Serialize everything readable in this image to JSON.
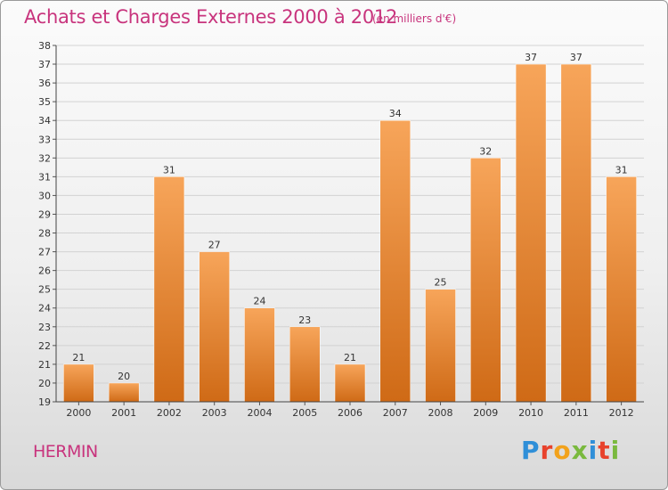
{
  "header": {
    "title": "Achats et Charges Externes 2000 à 2012",
    "subtitle": "(en milliers d'€)"
  },
  "footer": {
    "commune": "HERMIN",
    "brand": "Proxiti",
    "brand_colors": [
      "#2f8fd8",
      "#e8422c",
      "#f2a21b",
      "#7ab93e",
      "#2f8fd8",
      "#e8422c",
      "#7ab93e"
    ]
  },
  "colors": {
    "text_accent": "#c8347d",
    "bar_light": "#f7a55a",
    "bar_dark": "#cf6a16",
    "grid": "#d2d2d2"
  },
  "chart_data": {
    "type": "bar",
    "categories": [
      "2000",
      "2001",
      "2002",
      "2003",
      "2004",
      "2005",
      "2006",
      "2007",
      "2008",
      "2009",
      "2010",
      "2011",
      "2012"
    ],
    "values": [
      21,
      20,
      31,
      27,
      24,
      23,
      21,
      34,
      25,
      32,
      37,
      37,
      31
    ],
    "ylim": [
      19,
      38
    ],
    "yticks": [
      19,
      20,
      21,
      22,
      23,
      24,
      25,
      26,
      27,
      28,
      29,
      30,
      31,
      32,
      33,
      34,
      35,
      36,
      37,
      38
    ],
    "grid": true,
    "data_labels": true
  }
}
